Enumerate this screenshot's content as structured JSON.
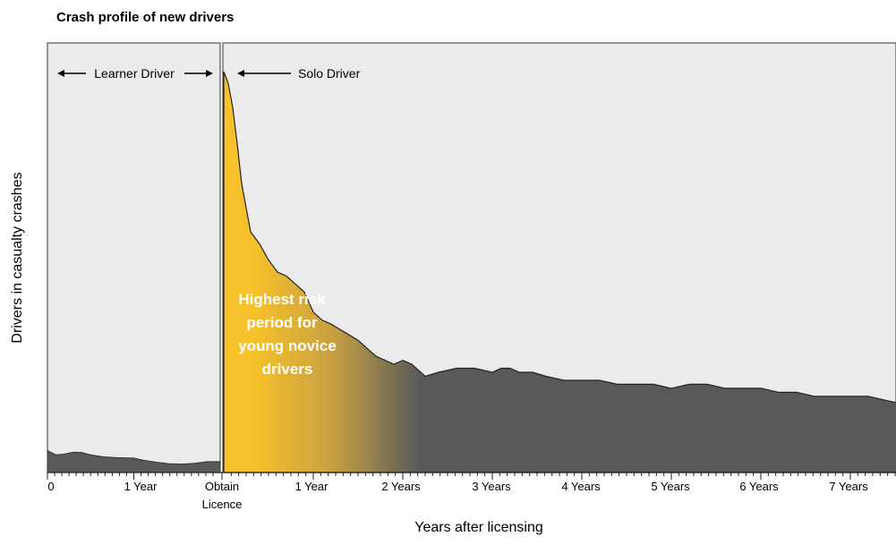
{
  "chart_data": {
    "type": "area",
    "title": "Crash profile of new drivers",
    "xlabel": "Years after licensing",
    "ylabel": "Drivers in casualty crashes",
    "panels": {
      "learner_label": "Learner Driver",
      "solo_label": "Solo Driver"
    },
    "x_ticks_learner": [
      "0",
      "1 Year"
    ],
    "x_ticks_transition": [
      "Obtain",
      "Licence"
    ],
    "x_ticks_solo": [
      "1 Year",
      "2 Years",
      "3 Years",
      "4 Years",
      "5 Years",
      "6 Years",
      "7 Years"
    ],
    "annotation": [
      "Highest risk",
      "period for",
      "young novice",
      "drivers"
    ],
    "y_scale": "relative (no numeric labels shown)",
    "ylim": [
      0,
      100
    ],
    "learner_series": {
      "x_years": [
        0,
        0.1,
        0.2,
        0.3,
        0.4,
        0.5,
        0.65,
        0.8,
        1.0,
        1.1,
        1.25,
        1.4,
        1.55,
        1.7,
        1.85,
        2.0
      ],
      "values": [
        5.5,
        4.4,
        4.6,
        5.1,
        5.0,
        4.4,
        3.9,
        3.7,
        3.6,
        3.1,
        2.6,
        2.2,
        2.1,
        2.3,
        2.7,
        2.7
      ]
    },
    "solo_series": {
      "x_years": [
        0,
        0.05,
        0.1,
        0.15,
        0.2,
        0.3,
        0.4,
        0.5,
        0.6,
        0.7,
        0.8,
        0.9,
        1.0,
        1.1,
        1.2,
        1.35,
        1.5,
        1.7,
        1.9,
        2.0,
        2.1,
        2.25,
        2.4,
        2.6,
        2.8,
        3.0,
        3.1,
        3.2,
        3.3,
        3.45,
        3.6,
        3.8,
        4.0,
        4.2,
        4.4,
        4.6,
        4.8,
        5.0,
        5.2,
        5.4,
        5.6,
        5.8,
        6.0,
        6.2,
        6.4,
        6.6,
        6.8,
        7.0,
        7.2,
        7.4,
        7.6
      ],
      "values": [
        100,
        97,
        91,
        82,
        72,
        60,
        57,
        53,
        50,
        49,
        47,
        45,
        40,
        38,
        37,
        35,
        33,
        29,
        27,
        28,
        27,
        24,
        25,
        26,
        26,
        25,
        26,
        26,
        25,
        25,
        24,
        23,
        23,
        23,
        22,
        22,
        22,
        21,
        22,
        22,
        21,
        21,
        21,
        20,
        20,
        19,
        19,
        19,
        19,
        18,
        17
      ]
    }
  },
  "colors": {
    "background": "#ebebeb",
    "area_fill": "#58595b",
    "highlight_yellow": "#f6c12b",
    "highlight_mid": "#c9a042",
    "annotation_text": "#ffffff"
  }
}
